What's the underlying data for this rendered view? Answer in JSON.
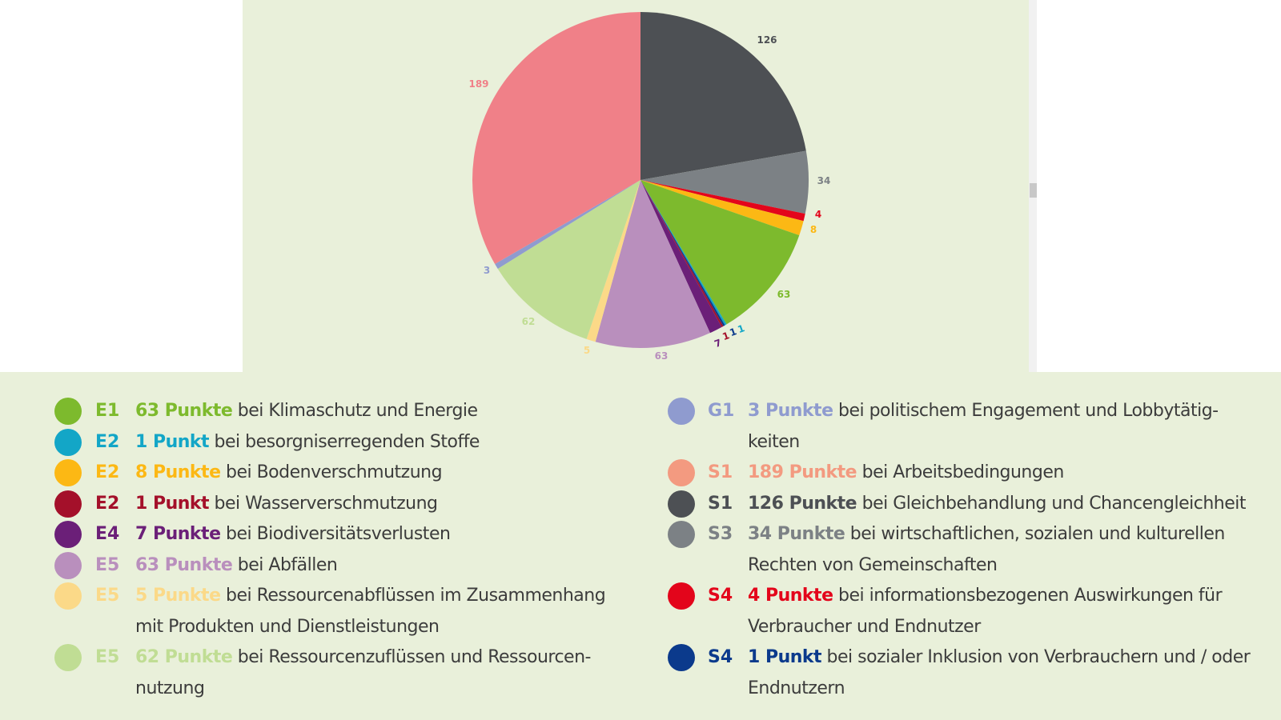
{
  "chart_data": {
    "type": "pie",
    "slices": [
      {
        "code": "S1",
        "value": 126,
        "label": "126",
        "color": "#4d5054",
        "points_text": "126 Punkte",
        "description": " bei Gleichbehandlung und Chancengleichheit"
      },
      {
        "code": "S3",
        "value": 34,
        "label": "34",
        "color": "#7c8185",
        "points_text": "34 Punkte",
        "description": " bei wirtschaftlichen, sozialen und kulturellen Rechten von Gemeinschaften"
      },
      {
        "code": "S4",
        "value": 4,
        "label": "4",
        "color": "#e3051b",
        "points_text": "4 Punkte",
        "description": " bei informationsbezogenen Auswirkungen für Verbraucher und Endnutzer"
      },
      {
        "code": "E2",
        "value": 8,
        "label": "8",
        "color": "#fcb814",
        "points_text": "8 Punkte",
        "description": " bei Bodenverschmutzung"
      },
      {
        "code": "E1",
        "value": 63,
        "label": "63",
        "color": "#7dba2d",
        "points_text": "63 Punkte",
        "description": " bei Klimaschutz und Energie"
      },
      {
        "code": "E2",
        "value": 1,
        "label": "1",
        "color": "#13a6c7",
        "points_text": "1 Punkt",
        "description": " bei besorgniserregenden Stoffe"
      },
      {
        "code": "S4",
        "value": 1,
        "label": "1",
        "color": "#0b3a8c",
        "points_text": "1 Punkt",
        "description": " bei sozialer Inklusion von Verbrauchern und / oder Endnutzern"
      },
      {
        "code": "E2",
        "value": 1,
        "label": "1",
        "color": "#a4102a",
        "points_text": "1 Punkt",
        "description": " bei Wasserverschmutzung"
      },
      {
        "code": "E4",
        "value": 7,
        "label": "7",
        "color": "#6b1f78",
        "points_text": "7 Punkte",
        "description": " bei Biodiversitätsverlusten"
      },
      {
        "code": "E5",
        "value": 63,
        "label": "63",
        "color": "#b98fbd",
        "points_text": "63 Punkte",
        "description": " bei Abfällen"
      },
      {
        "code": "E5",
        "value": 5,
        "label": "5",
        "color": "#fbd988",
        "points_text": "5 Punkte",
        "description": " bei Ressourcenabflüssen im Zusammenhang mit Produkten und Dienstleistungen"
      },
      {
        "code": "E5",
        "value": 62,
        "label": "62",
        "color": "#c0dd94",
        "points_text": "62 Punkte",
        "description": " bei Ressourcenzuflüssen und Ressourcen-nutzung"
      },
      {
        "code": "G1",
        "value": 3,
        "label": "3",
        "color": "#8f9bcf",
        "points_text": "3 Punkte",
        "description": " bei politischem Engagement und Lobbytätig-keiten"
      },
      {
        "code": "S1",
        "value": 189,
        "label": "189",
        "color": "#f08088",
        "points_text": "189 Punkte",
        "description": " bei Arbeitsbedingungen"
      }
    ],
    "legend": {
      "left": [
        {
          "code": "E1",
          "points": "63 Punkte",
          "rest": " bei Klimaschutz und Energie",
          "color": "#7dba2d"
        },
        {
          "code": "E2",
          "points": "1 Punkt",
          "rest": " bei besorgniserregenden Stoffe",
          "color": "#13a6c7"
        },
        {
          "code": "E2",
          "points": "8 Punkte",
          "rest": " bei Bodenverschmutzung",
          "color": "#fcb814"
        },
        {
          "code": "E2",
          "points": "1 Punkt",
          "rest": " bei Wasserverschmutzung",
          "color": "#a4102a"
        },
        {
          "code": "E4",
          "points": "7 Punkte",
          "rest": " bei Biodiversitätsverlusten",
          "color": "#6b1f78"
        },
        {
          "code": "E5",
          "points": "63 Punkte",
          "rest": " bei Abfällen",
          "color": "#b98fbd"
        },
        {
          "code": "E5",
          "points": "5 Punkte",
          "rest": " bei Ressourcenabflüssen im Zusammenhang mit Produkten und Dienstleistungen",
          "color": "#fbd988"
        },
        {
          "code": "E5",
          "points": "62 Punkte",
          "rest": " bei Ressourcenzuflüssen und Ressourcen-nutzung",
          "color": "#c0dd94"
        }
      ],
      "right": [
        {
          "code": "G1",
          "points": "3 Punkte",
          "rest": " bei politischem Engagement und Lobbytätig-keiten",
          "color": "#8f9bcf"
        },
        {
          "code": "S1",
          "points": "189 Punkte",
          "rest": " bei Arbeitsbedingungen",
          "color": "#f39a80"
        },
        {
          "code": "S1",
          "points": "126 Punkte",
          "rest": " bei Gleichbehandlung und Chancengleichheit",
          "color": "#4d5054"
        },
        {
          "code": "S3",
          "points": "34 Punkte",
          "rest": " bei wirtschaftlichen, sozialen und kulturellen Rechten von Gemeinschaften",
          "color": "#7c8185"
        },
        {
          "code": "S4",
          "points": "4 Punkte",
          "rest": " bei informationsbezogenen Auswirkungen für Verbraucher und Endnutzer",
          "color": "#e3051b"
        },
        {
          "code": "S4",
          "points": "1 Punkt",
          "rest": " bei sozialer Inklusion von Verbrauchern und / oder Endnutzern",
          "color": "#0b3a8c"
        }
      ]
    }
  }
}
